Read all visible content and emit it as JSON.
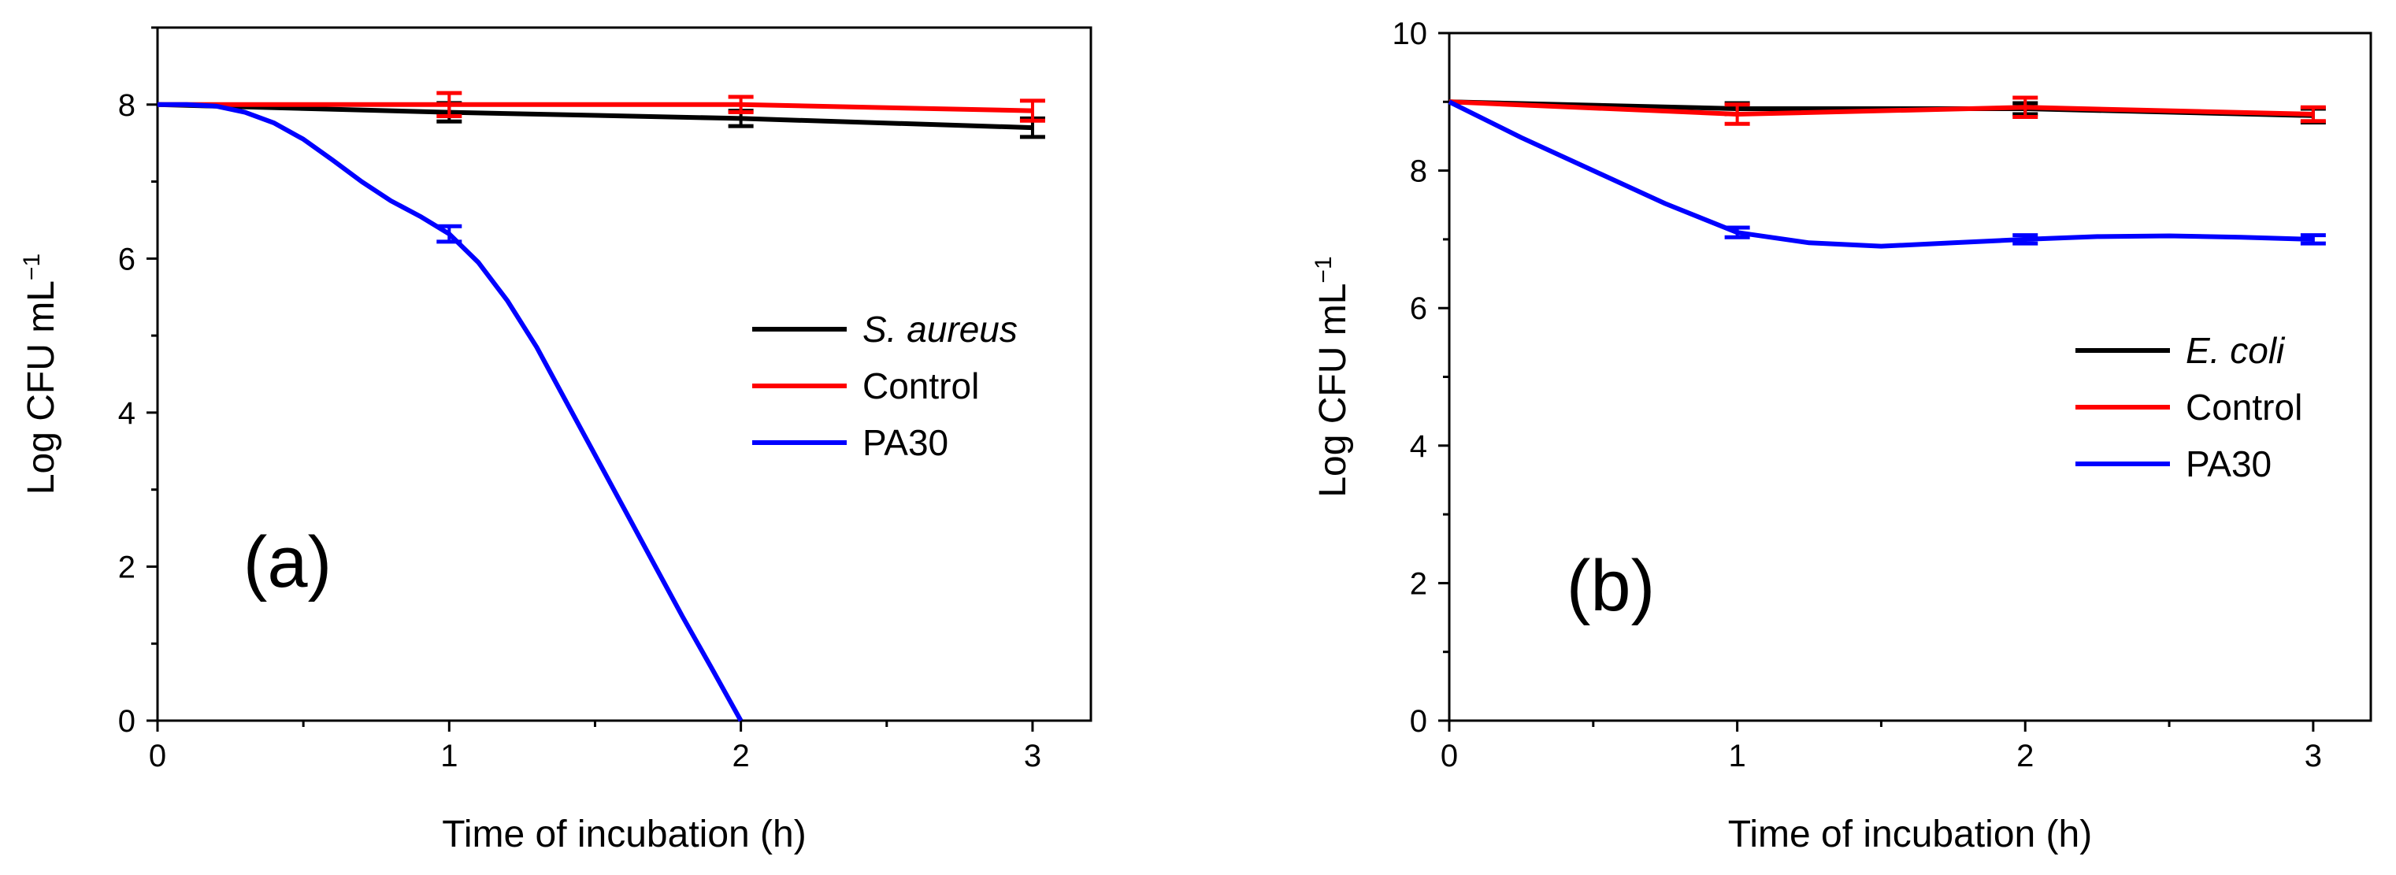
{
  "chart_data": [
    {
      "id": "a",
      "type": "line",
      "panel_label": "(a)",
      "xlabel": "Time of incubation (h)",
      "ylabel": "Log CFU mL",
      "ylabel_sup": "−1",
      "xlim": [
        0,
        3.2
      ],
      "ylim": [
        0,
        9
      ],
      "xticks": [
        "0",
        "1",
        "2",
        "3"
      ],
      "yticks": [
        "0",
        "2",
        "4",
        "6",
        "8"
      ],
      "xtick_values": [
        0,
        1,
        2,
        3
      ],
      "ytick_values": [
        0,
        2,
        4,
        6,
        8
      ],
      "legend_position": "center-right",
      "series": [
        {
          "name": "S. aureus",
          "italic": true,
          "color": "#000000",
          "x": [
            0,
            1,
            2,
            3
          ],
          "y": [
            8.0,
            7.9,
            7.82,
            7.7
          ],
          "err": [
            0,
            0.12,
            0.1,
            0.12
          ]
        },
        {
          "name": "Control",
          "italic": false,
          "color": "#ff0000",
          "x": [
            0,
            1,
            2,
            3
          ],
          "y": [
            8.0,
            8.0,
            8.0,
            7.92
          ],
          "err": [
            0,
            0.15,
            0.1,
            0.13
          ]
        },
        {
          "name": "PA30",
          "italic": false,
          "color": "#0000ff",
          "x": [
            0,
            1,
            2
          ],
          "y": [
            8.0,
            6.32,
            0.0
          ],
          "err": [
            0,
            0.1,
            0
          ],
          "curve": [
            [
              0,
              8.0
            ],
            [
              0.1,
              8.0
            ],
            [
              0.2,
              7.98
            ],
            [
              0.3,
              7.9
            ],
            [
              0.4,
              7.76
            ],
            [
              0.5,
              7.55
            ],
            [
              0.6,
              7.28
            ],
            [
              0.7,
              7.0
            ],
            [
              0.8,
              6.75
            ],
            [
              0.9,
              6.55
            ],
            [
              1.0,
              6.32
            ],
            [
              1.1,
              5.95
            ],
            [
              1.2,
              5.45
            ],
            [
              1.3,
              4.85
            ],
            [
              1.4,
              4.15
            ],
            [
              1.5,
              3.45
            ],
            [
              1.6,
              2.75
            ],
            [
              1.7,
              2.05
            ],
            [
              1.8,
              1.35
            ],
            [
              1.9,
              0.68
            ],
            [
              2.0,
              0.0
            ]
          ]
        }
      ]
    },
    {
      "id": "b",
      "type": "line",
      "panel_label": "(b)",
      "xlabel": "Time of incubation (h)",
      "ylabel": "Log CFU mL",
      "ylabel_sup": "−1",
      "xlim": [
        0,
        3.2
      ],
      "ylim": [
        0,
        10
      ],
      "xticks": [
        "0",
        "1",
        "2",
        "3"
      ],
      "yticks": [
        "0",
        "2",
        "4",
        "6",
        "8",
        "10"
      ],
      "xtick_values": [
        0,
        1,
        2,
        3
      ],
      "ytick_values": [
        0,
        2,
        4,
        6,
        8,
        10
      ],
      "legend_position": "center-right",
      "series": [
        {
          "name": "E. coli",
          "italic": true,
          "color": "#000000",
          "x": [
            0,
            1,
            2,
            3
          ],
          "y": [
            9.0,
            8.9,
            8.9,
            8.8
          ],
          "err": [
            0,
            0.08,
            0.08,
            0.1
          ]
        },
        {
          "name": "Control",
          "italic": false,
          "color": "#ff0000",
          "x": [
            0,
            1,
            2,
            3
          ],
          "y": [
            9.0,
            8.82,
            8.92,
            8.82
          ],
          "err": [
            0,
            0.14,
            0.14,
            0.1
          ]
        },
        {
          "name": "PA30",
          "italic": false,
          "color": "#0000ff",
          "x": [
            0,
            1,
            2,
            3
          ],
          "y": [
            9.0,
            7.1,
            7.0,
            7.0
          ],
          "err": [
            0,
            0.07,
            0.06,
            0.06
          ],
          "curve": [
            [
              0,
              9.0
            ],
            [
              0.25,
              8.48
            ],
            [
              0.5,
              8.0
            ],
            [
              0.75,
              7.52
            ],
            [
              1.0,
              7.1
            ],
            [
              1.25,
              6.95
            ],
            [
              1.5,
              6.9
            ],
            [
              1.75,
              6.95
            ],
            [
              2.0,
              7.0
            ],
            [
              2.25,
              7.04
            ],
            [
              2.5,
              7.05
            ],
            [
              2.75,
              7.03
            ],
            [
              3.0,
              7.0
            ]
          ]
        }
      ]
    }
  ]
}
